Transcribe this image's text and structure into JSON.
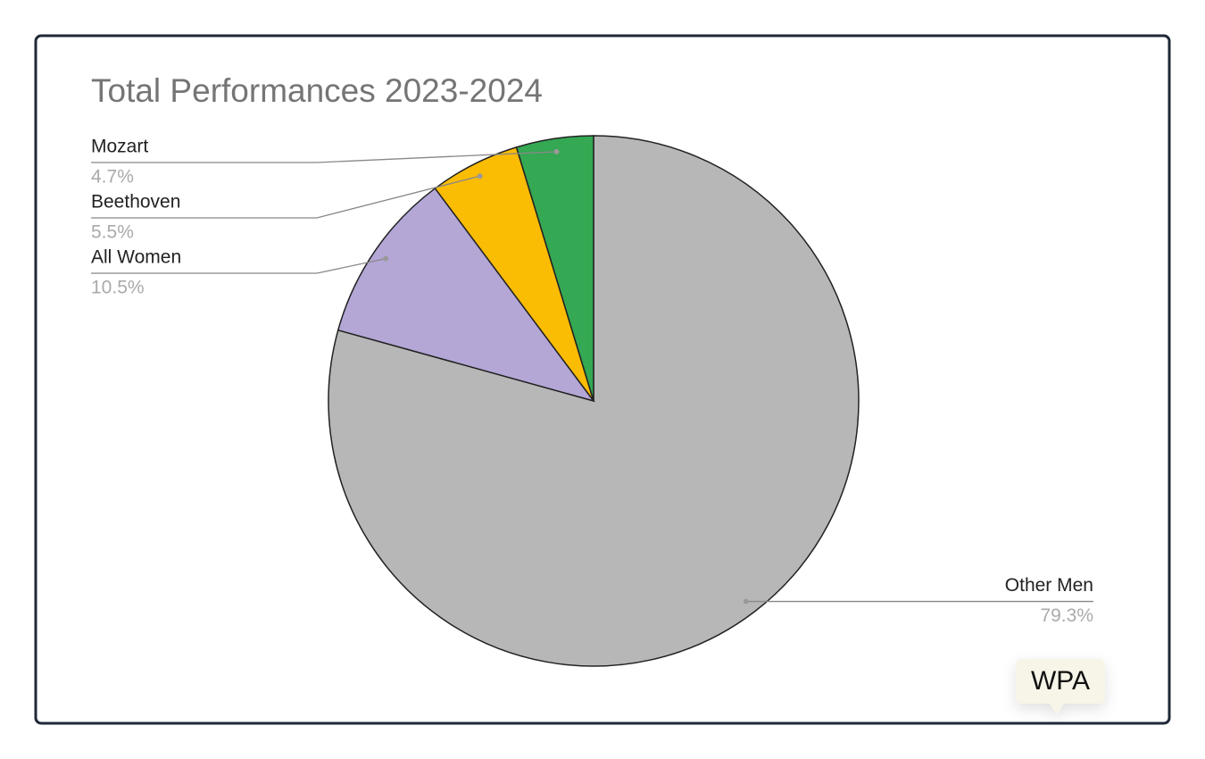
{
  "chart_data": {
    "type": "pie",
    "title": "Total Performances 2023-2024",
    "categories": [
      "Other Men",
      "All Women",
      "Beethoven",
      "Mozart"
    ],
    "values": [
      79.3,
      10.5,
      5.5,
      4.7
    ],
    "value_labels": [
      "79.3%",
      "10.5%",
      "5.5%",
      "4.7%"
    ],
    "colors": [
      "#b7b7b7",
      "#b4a7d6",
      "#fbbc04",
      "#34a853"
    ],
    "annotation": "WPA"
  }
}
